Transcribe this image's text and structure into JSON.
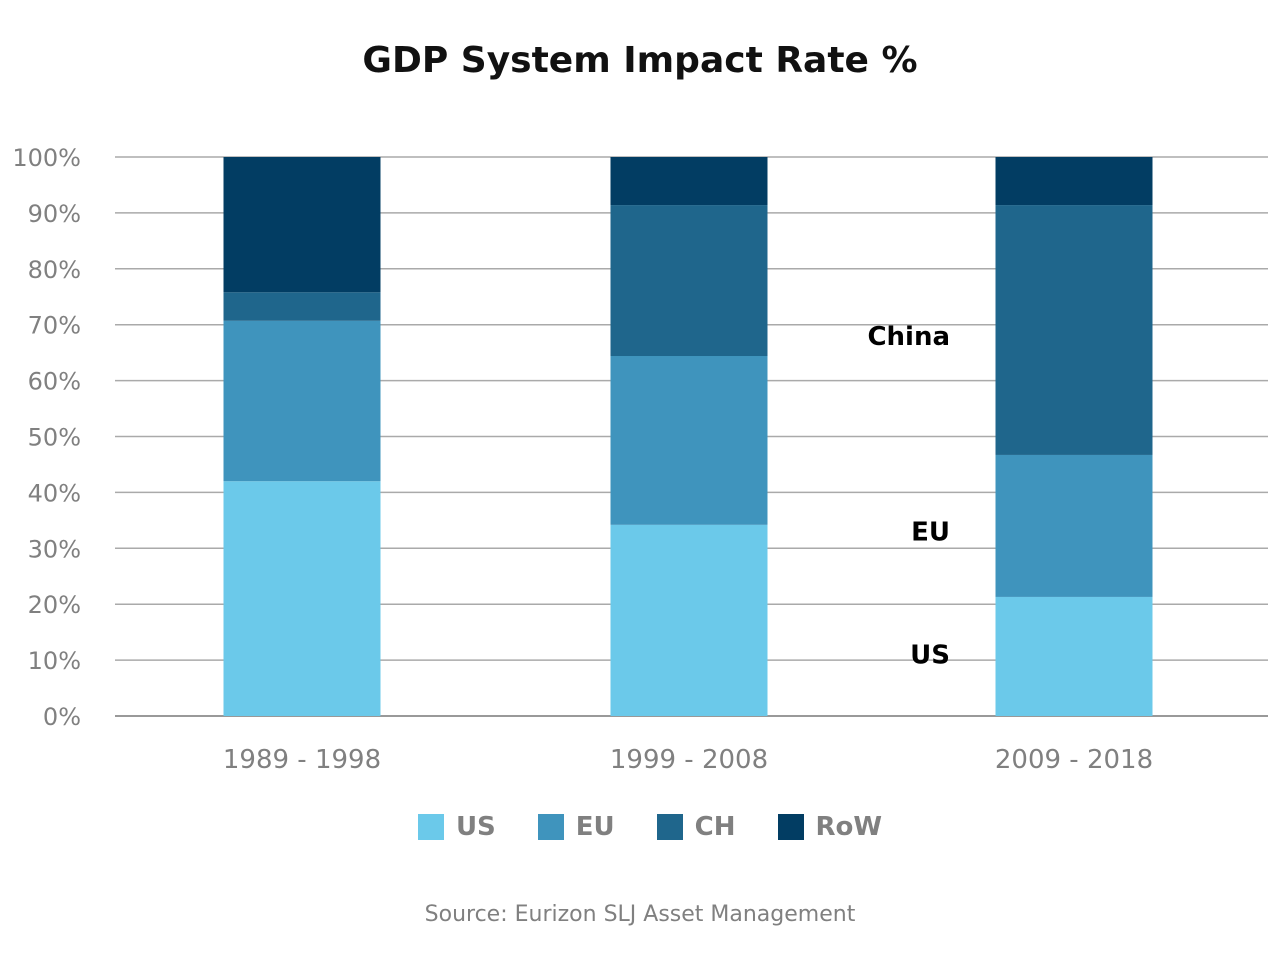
{
  "chart_data": {
    "type": "bar",
    "stacked": true,
    "title": "GDP System Impact Rate %",
    "categories": [
      "1989 - 1998",
      "1999 - 2008",
      "2009 - 2018"
    ],
    "series": [
      {
        "name": "US",
        "color": "#6bc9ea",
        "values": [
          42.0,
          34.2,
          21.3
        ]
      },
      {
        "name": "EU",
        "color": "#3f94bd",
        "values": [
          28.7,
          30.2,
          25.4
        ]
      },
      {
        "name": "CH",
        "color": "#1f668c",
        "values": [
          5.1,
          27.0,
          44.7
        ]
      },
      {
        "name": "RoW",
        "color": "#023d63",
        "values": [
          24.2,
          8.6,
          8.6
        ]
      }
    ],
    "yticks": [
      "0%",
      "10%",
      "20%",
      "30%",
      "40%",
      "50%",
      "60%",
      "70%",
      "80%",
      "90%",
      "100%"
    ],
    "ylim": [
      0,
      100
    ],
    "grid": true,
    "legend_position": "bottom",
    "annotations": [
      {
        "text": "China",
        "y": 68
      },
      {
        "text": "EU",
        "y": 33
      },
      {
        "text": "US",
        "y": 11
      }
    ],
    "source": "Source: Eurizon SLJ Asset Management"
  }
}
